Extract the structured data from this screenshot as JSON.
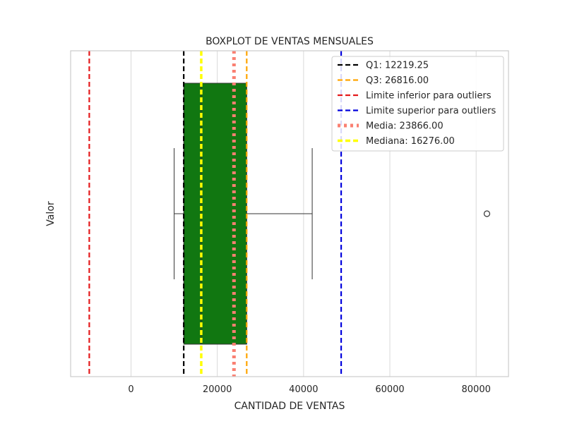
{
  "chart_data": {
    "type": "boxplot",
    "orientation": "horizontal",
    "title": "BOXPLOT DE VENTAS MENSUALES",
    "xlabel": "CANTIDAD DE VENTAS",
    "ylabel": "Valor",
    "xlim": [
      -14000,
      87500
    ],
    "xticks": [
      0,
      20000,
      40000,
      60000,
      80000
    ],
    "xtick_labels": [
      "0",
      "20000",
      "40000",
      "60000",
      "80000"
    ],
    "grid": "x",
    "box": {
      "whisker_low": 10000,
      "q1": 12219.25,
      "median": 16276,
      "q3": 26816,
      "whisker_high": 42000,
      "fill_color": "#117711",
      "outliers": [
        82500
      ]
    },
    "reference_lines": [
      {
        "label": "Q1: 12219.25",
        "value": 12219.25,
        "color": "#000000",
        "style": "dashed"
      },
      {
        "label": "Q3: 26816.00",
        "value": 26816.0,
        "color": "#ffa500",
        "style": "dashed"
      },
      {
        "label": "Limite inferior para outliers",
        "value": -9675.875,
        "color": "#e41a1c",
        "style": "dashed"
      },
      {
        "label": "Limite superior para outliers",
        "value": 48711.125,
        "color": "#0000dd",
        "style": "dashed"
      },
      {
        "label": "Media: 23866.00",
        "value": 23866.0,
        "color": "#fa8072",
        "style": "dotted"
      },
      {
        "label": "Mediana: 16276.00",
        "value": 16276.0,
        "color": "#ffff00",
        "style": "dashed"
      }
    ],
    "legend_position": "top-right"
  }
}
